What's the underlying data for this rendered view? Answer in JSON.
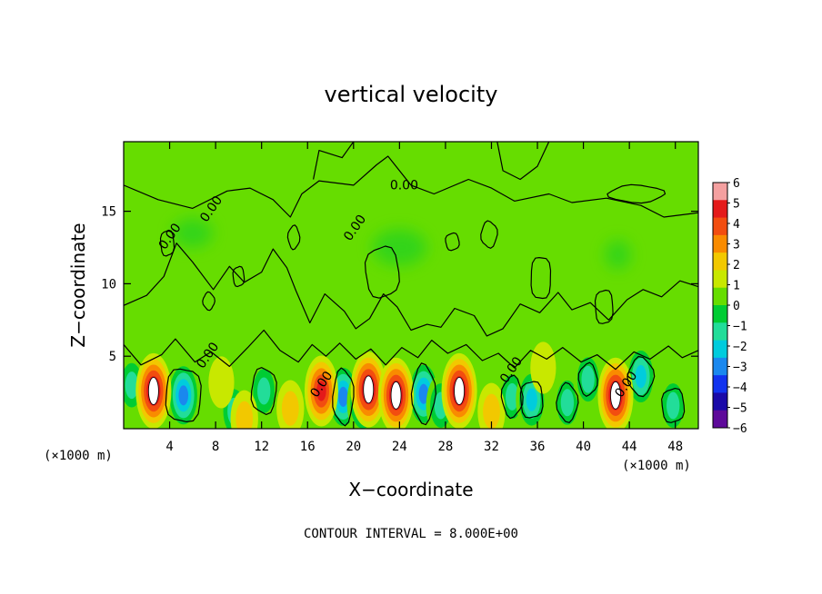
{
  "chart_data": {
    "type": "heatmap",
    "title": "vertical velocity",
    "xlabel": "X−coordinate",
    "ylabel": "Z−coordinate",
    "x_unit_left": "(×1000 m)",
    "x_unit_right": "(×1000 m)",
    "footnote": "CONTOUR INTERVAL = 8.000E+00",
    "xlim": [
      0,
      50
    ],
    "ylim": [
      0,
      19.8
    ],
    "xticks": [
      4,
      8,
      12,
      16,
      20,
      24,
      28,
      32,
      36,
      40,
      44,
      48
    ],
    "yticks": [
      5,
      10,
      15
    ],
    "colorbar": {
      "levels": [
        6,
        5,
        4,
        3,
        2,
        1,
        0,
        -1,
        -2,
        -3,
        -4,
        -5,
        -6
      ],
      "colors": [
        "#f4a0a0",
        "#e41a1a",
        "#f24d10",
        "#f98b00",
        "#f2c800",
        "#c8e800",
        "#66dd00",
        "#00cc33",
        "#22dd99",
        "#00ccdd",
        "#1a88ee",
        "#1133ee",
        "#1a0aa8",
        "#5e0a9a"
      ]
    },
    "contour_labels": [
      {
        "text": "0.00",
        "x": 24.4,
        "y": 16.5
      },
      {
        "text": "0.00",
        "x": 7.9,
        "y": 15
      },
      {
        "text": "0.00",
        "x": 4.3,
        "y": 13.1
      },
      {
        "text": "0.00",
        "x": 20.4,
        "y": 13.7
      },
      {
        "text": "0.00",
        "x": 7.6,
        "y": 4.9
      },
      {
        "text": "0.00",
        "x": 17.5,
        "y": 2.9
      },
      {
        "text": "0.00",
        "x": 34,
        "y": 3.9
      },
      {
        "text": "0.00",
        "x": 44,
        "y": 2.9
      }
    ],
    "updrafts": [
      {
        "x": 2.6,
        "z": 2.6,
        "peak": 6
      },
      {
        "x": 17.2,
        "z": 2.6,
        "peak": 5
      },
      {
        "x": 21.3,
        "z": 2.7,
        "peak": 6
      },
      {
        "x": 23.7,
        "z": 2.3,
        "peak": 6
      },
      {
        "x": 29.2,
        "z": 2.6,
        "peak": 6
      },
      {
        "x": 42.8,
        "z": 2.3,
        "peak": 6
      },
      {
        "x": 10.5,
        "z": 0.7,
        "peak": 2
      },
      {
        "x": 14.5,
        "z": 1.4,
        "peak": 2
      },
      {
        "x": 32,
        "z": 1.2,
        "peak": 2
      },
      {
        "x": 8.5,
        "z": 3.2,
        "peak": 1
      },
      {
        "x": 36.5,
        "z": 4.2,
        "peak": 1
      }
    ],
    "downdrafts": [
      {
        "x": 5.2,
        "z": 2.3,
        "peak": -5
      },
      {
        "x": 9.6,
        "z": 1.2,
        "peak": -3
      },
      {
        "x": 12.2,
        "z": 2.6,
        "peak": -3
      },
      {
        "x": 19.1,
        "z": 2.2,
        "peak": -5
      },
      {
        "x": 20.8,
        "z": 1.8,
        "peak": -4
      },
      {
        "x": 26.1,
        "z": 2.4,
        "peak": -5
      },
      {
        "x": 27.6,
        "z": 1.6,
        "peak": -3
      },
      {
        "x": 33.8,
        "z": 2.2,
        "peak": -3
      },
      {
        "x": 35.5,
        "z": 2.0,
        "peak": -4
      },
      {
        "x": 38.6,
        "z": 1.8,
        "peak": -3
      },
      {
        "x": 40.4,
        "z": 3.4,
        "peak": -3
      },
      {
        "x": 45,
        "z": 3.6,
        "peak": -4
      },
      {
        "x": 47.8,
        "z": 1.6,
        "peak": -3
      },
      {
        "x": 0.7,
        "z": 3.0,
        "peak": -3
      }
    ]
  }
}
